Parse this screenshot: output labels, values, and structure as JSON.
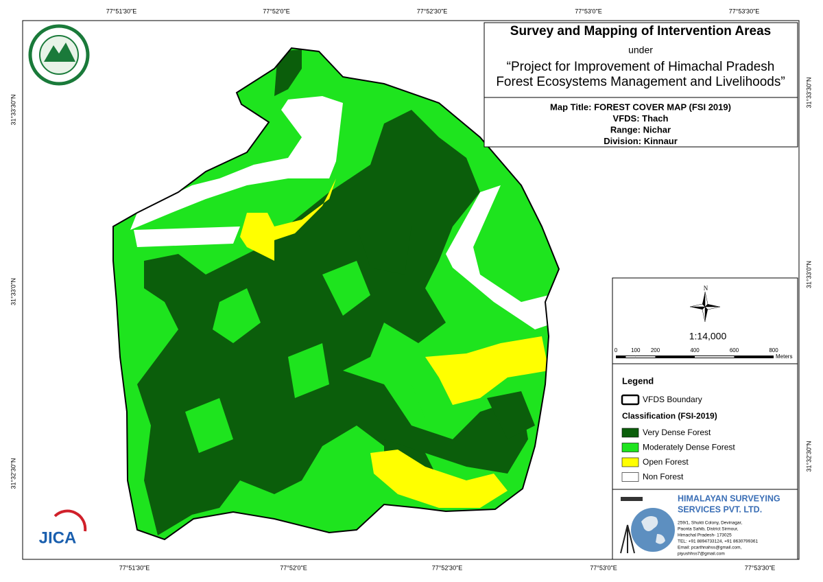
{
  "header": {
    "title": "Survey and Mapping of Intervention Areas",
    "under": "under",
    "project_lines": [
      "“Project for Improvement of Himachal Pradesh",
      "Forest Ecosystems Management and Livelihoods”"
    ],
    "map_info": [
      "Map Title: FOREST COVER MAP (FSI 2019)",
      "VFDS: Thach",
      "Range: Nichar",
      "Division: Kinnaur"
    ]
  },
  "coordinates": {
    "top": [
      "77°51'30\"E",
      "77°52'0\"E",
      "77°52'30\"E",
      "77°53'0\"E",
      "77°53'30\"E"
    ],
    "bottom": [
      "77°51'30\"E",
      "77°52'0\"E",
      "77°52'30\"E",
      "77°53'0\"E",
      "77°53'30\"E"
    ],
    "left": [
      "31°33'30\"N",
      "31°33'0\"N",
      "31°32'30\"N"
    ],
    "right": [
      "31°33'30\"N",
      "31°33'0\"N",
      "31°32'30\"N"
    ]
  },
  "north": "N",
  "scale_text": "1:14,000",
  "scale_bar": {
    "labels": [
      0,
      100,
      200,
      400,
      600,
      800
    ],
    "unit": "Meters"
  },
  "legend": {
    "title": "Legend",
    "boundary": "VFDS Boundary",
    "classification_title": "Classification (FSI-2019)",
    "items": [
      {
        "label": "Very Dense Forest",
        "color": "#0b5e0b"
      },
      {
        "label": "Moderately Dense Forest",
        "color": "#1ee41e"
      },
      {
        "label": "Open Forest",
        "color": "#ffff00"
      },
      {
        "label": "Non Forest",
        "color": "#ffffff"
      }
    ]
  },
  "company": {
    "name_lines": [
      "HIMALAYAN SURVEYING",
      "SERVICES PVT. LTD."
    ],
    "address_lines": [
      "259/1, Shukti Colony, Devinagar,",
      "Paonta Sahib, District Sirmour,",
      "Himachal Pradesh- 173025",
      "TEL: +91 8894733124, +91 8630799361",
      "Email: pcarthnahss@gmail.com,",
      "piyushhss7@gmail.com"
    ]
  },
  "jica": "JICA"
}
